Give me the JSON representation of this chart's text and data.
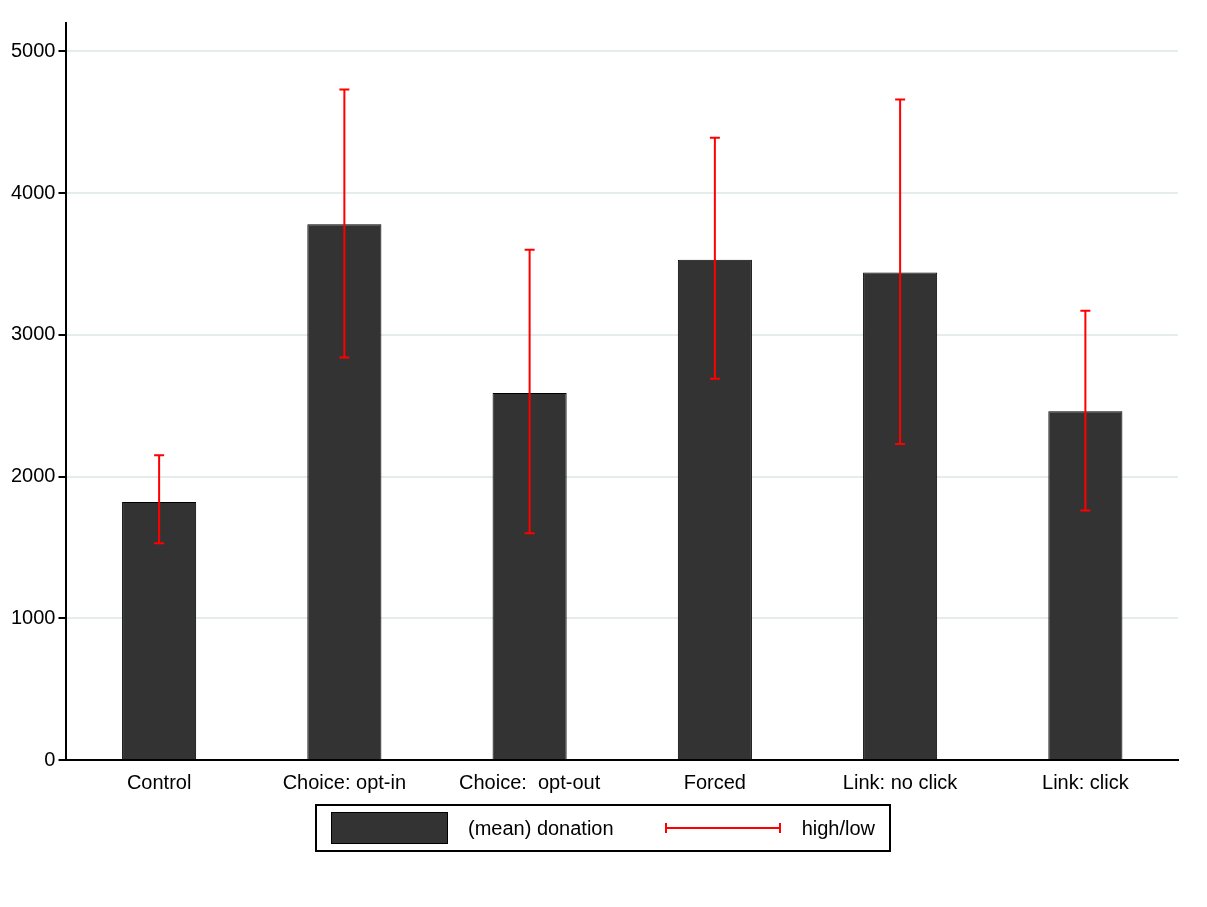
{
  "chart_data": {
    "type": "bar",
    "categories": [
      "Control",
      "Choice: opt-in",
      "Choice:  opt-out",
      "Forced",
      "Link: no click",
      "Link: click"
    ],
    "series": [
      {
        "name": "(mean) donation",
        "color": "#333333",
        "values": [
          1820,
          3780,
          2590,
          3530,
          3440,
          2460
        ],
        "errors": [
          [
            1530,
            2150
          ],
          [
            2840,
            4730
          ],
          [
            1600,
            3600
          ],
          [
            2690,
            4390
          ],
          [
            2230,
            4660
          ],
          [
            1760,
            3170
          ]
        ]
      }
    ],
    "ylim": [
      0,
      5200
    ],
    "yticks": [
      0,
      1000,
      2000,
      3000,
      4000,
      5000
    ],
    "grid": "y",
    "legend": "bottom",
    "annotations": [
      "high/low"
    ]
  }
}
